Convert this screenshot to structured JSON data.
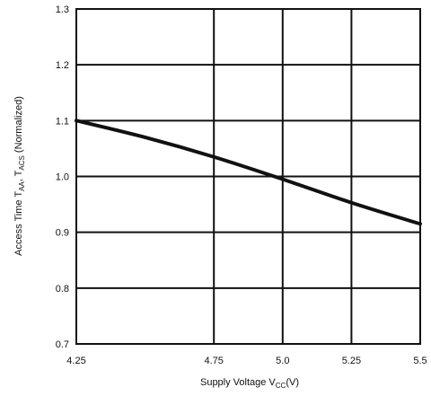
{
  "chart_data": {
    "type": "line",
    "xlabel": {
      "main": "Supply Voltage  V",
      "sub": "CC",
      "tail": "(V)"
    },
    "ylabel": {
      "part1": "Access Time T",
      "sub1": "AA",
      "part2": ", T",
      "sub2": "ACS",
      "part3": " (Normalized)"
    },
    "xlim": [
      4.25,
      5.5
    ],
    "ylim": [
      0.7,
      1.3
    ],
    "x_ticks": [
      4.25,
      4.75,
      5.0,
      5.25,
      5.5
    ],
    "x_tick_labels": [
      "4.25",
      "4.75",
      "5.0",
      "5.25",
      "5.5"
    ],
    "y_ticks": [
      0.7,
      0.8,
      0.9,
      1.0,
      1.1,
      1.2,
      1.3
    ],
    "y_tick_labels": [
      "0.7",
      "0.8",
      "0.9",
      "1.0",
      "1.1",
      "1.2",
      "1.3"
    ],
    "grid": true,
    "series": [
      {
        "x": [
          4.25,
          4.5,
          4.75,
          5.0,
          5.25,
          5.5
        ],
        "y": [
          1.1,
          1.07,
          1.035,
          0.995,
          0.953,
          0.915
        ]
      }
    ],
    "colors": {
      "line": "#111111",
      "grid": "#111111",
      "frame": "#111111"
    }
  }
}
